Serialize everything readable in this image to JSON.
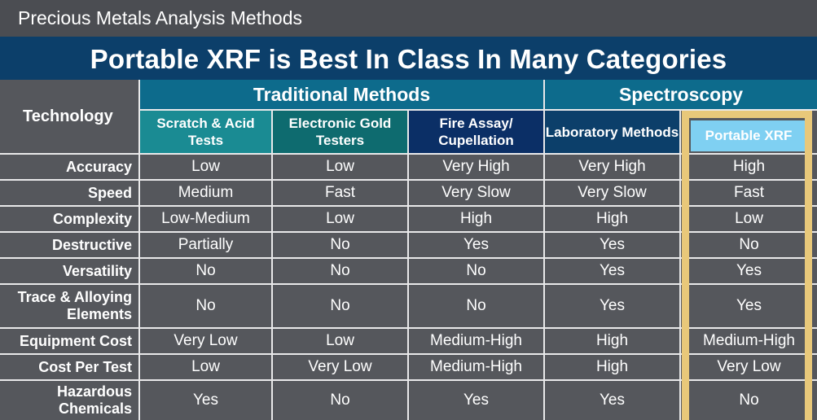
{
  "slide": {
    "section_title": "Precious Metals Analysis Methods",
    "headline": "Portable XRF is Best In Class In Many Categories"
  },
  "table": {
    "technology_label": "Technology",
    "groups": [
      "Traditional Methods",
      "Spectroscopy"
    ],
    "columns": [
      "Scratch & Acid Tests",
      "Electronic Gold Testers",
      "Fire Assay/ Cupellation",
      "Laboratory Methods",
      "Portable XRF"
    ],
    "rows": [
      {
        "label": "Accuracy",
        "values": [
          "Low",
          "Low",
          "Very High",
          "Very High",
          "High"
        ]
      },
      {
        "label": "Speed",
        "values": [
          "Medium",
          "Fast",
          "Very Slow",
          "Very Slow",
          "Fast"
        ]
      },
      {
        "label": "Complexity",
        "values": [
          "Low-Medium",
          "Low",
          "High",
          "High",
          "Low"
        ]
      },
      {
        "label": "Destructive",
        "values": [
          "Partially",
          "No",
          "Yes",
          "Yes",
          "No"
        ]
      },
      {
        "label": "Versatility",
        "values": [
          "No",
          "No",
          "No",
          "Yes",
          "Yes"
        ]
      },
      {
        "label": "Trace & Alloying Elements",
        "values": [
          "No",
          "No",
          "No",
          "Yes",
          "Yes"
        ]
      },
      {
        "label": "Equipment Cost",
        "values": [
          "Very Low",
          "Low",
          "Medium-High",
          "High",
          "Medium-High"
        ]
      },
      {
        "label": "Cost Per Test",
        "values": [
          "Low",
          "Very Low",
          "Medium-High",
          "High",
          "Very Low"
        ]
      },
      {
        "label": "Hazardous Chemicals",
        "values": [
          "Yes",
          "No",
          "Yes",
          "Yes",
          "No"
        ]
      }
    ]
  },
  "colors": {
    "headline_bg": "#0c3f6a",
    "group_header_bg": "#0d6b8c",
    "column_header_bgs": [
      "#1a8b93",
      "#0e6b6f",
      "#0b2f66",
      "#0c3f6a",
      "#7fd0f2"
    ],
    "highlight_frame": "#e8c87a"
  }
}
